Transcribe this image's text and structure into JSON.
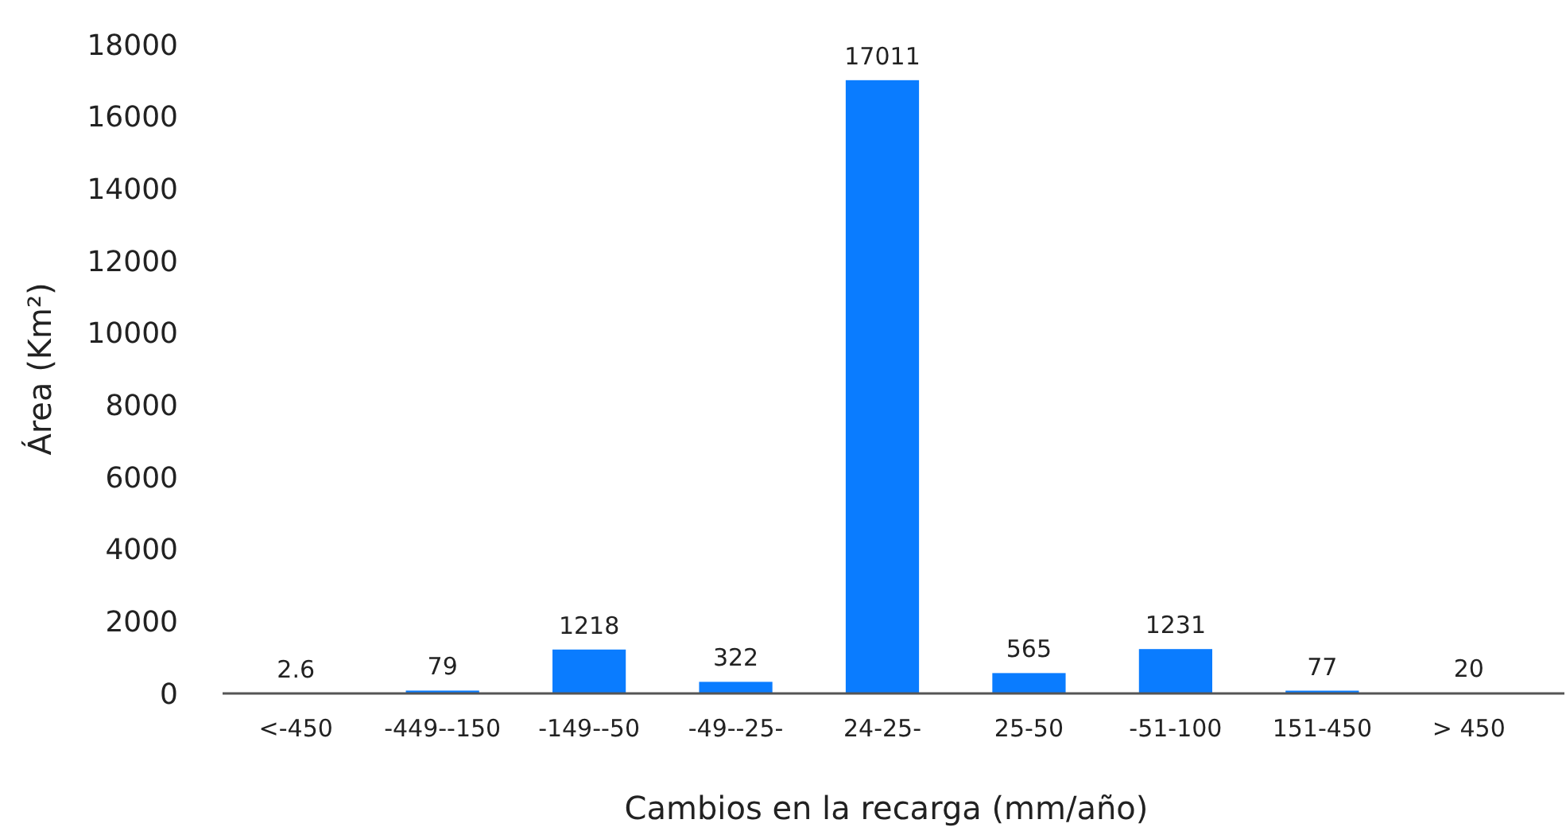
{
  "chart_data": {
    "type": "bar",
    "xlabel": "Cambios en la recarga (mm/año)",
    "ylabel": "Área (Km²)",
    "categories": [
      "<-450",
      "-449--150",
      "-149--50",
      "-49--25-",
      "24-25-",
      "25-50",
      "-51-100",
      "151-450",
      "> 450"
    ],
    "values": [
      2.6,
      79,
      1218,
      322,
      17011,
      565,
      1231,
      77,
      20
    ],
    "color": "#0a7cff",
    "ylim": [
      0,
      18000
    ],
    "yticks": [
      0,
      2000,
      4000,
      6000,
      8000,
      10000,
      12000,
      14000,
      16000,
      18000
    ],
    "grid": false,
    "data_labels": true
  }
}
